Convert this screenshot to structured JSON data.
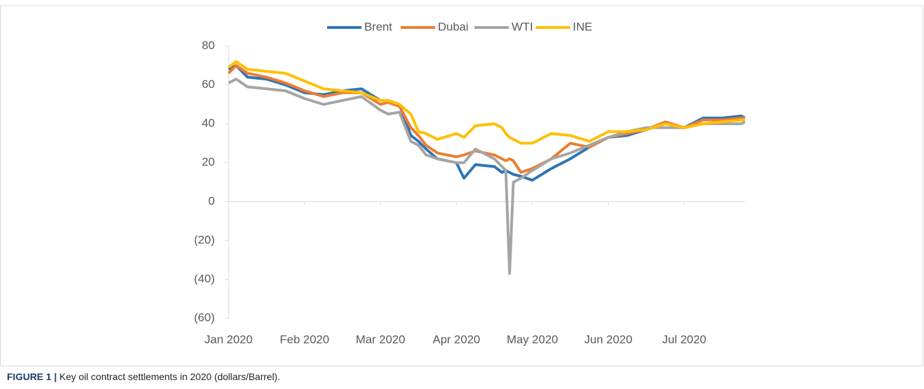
{
  "chart_data": {
    "type": "line",
    "x": [
      0,
      0.1,
      0.25,
      0.5,
      0.75,
      1,
      1.25,
      1.5,
      1.75,
      2,
      2.1,
      2.25,
      2.4,
      2.5,
      2.6,
      2.75,
      3,
      3.1,
      3.25,
      3.5,
      3.6,
      3.65,
      3.7,
      3.75,
      3.85,
      4,
      4.25,
      4.5,
      4.75,
      5,
      5.25,
      5.5,
      5.75,
      6,
      6.25,
      6.5,
      6.75,
      6.8
    ],
    "series": [
      {
        "name": "Brent",
        "color": "#2e75b6",
        "values": [
          68,
          70,
          64,
          63,
          60,
          56,
          55,
          57,
          58,
          52,
          52,
          50,
          34,
          31,
          27,
          22,
          20,
          12,
          19,
          18,
          15,
          16,
          15,
          14,
          13,
          11,
          17,
          22,
          28,
          33,
          34,
          37,
          40,
          38,
          43,
          43,
          44,
          43
        ]
      },
      {
        "name": "Dubai",
        "color": "#ed7d31",
        "values": [
          66,
          70,
          66,
          64,
          61,
          57,
          54,
          56,
          56,
          50,
          51,
          49,
          38,
          34,
          29,
          25,
          23,
          24,
          26,
          24,
          22,
          21,
          22,
          21,
          15,
          17,
          22,
          30,
          28,
          33,
          35,
          37,
          41,
          38,
          42,
          42,
          43,
          43
        ]
      },
      {
        "name": "WTI",
        "color": "#a5a5a5",
        "values": [
          61,
          63,
          59,
          58,
          57,
          53,
          50,
          52,
          54,
          47,
          45,
          46,
          31,
          29,
          24,
          22,
          20,
          20,
          27,
          22,
          18,
          16,
          -37,
          10,
          12,
          16,
          22,
          25,
          29,
          33,
          36,
          38,
          38,
          38,
          40,
          40,
          40,
          41
        ]
      },
      {
        "name": "INE",
        "color": "#ffc000",
        "values": [
          69,
          72,
          68,
          67,
          66,
          62,
          58,
          57,
          56,
          52,
          52,
          50,
          45,
          36,
          35,
          32,
          35,
          33,
          39,
          40,
          38,
          35,
          33,
          32,
          30,
          30,
          35,
          34,
          31,
          36,
          36,
          37,
          40,
          38,
          40,
          41,
          42,
          42
        ]
      }
    ],
    "xlim": [
      0,
      6.8
    ],
    "xticks": [
      {
        "value": 0,
        "label": "Jan 2020"
      },
      {
        "value": 1,
        "label": "Feb 2020"
      },
      {
        "value": 2,
        "label": "Mar 2020"
      },
      {
        "value": 3,
        "label": "Apr 2020"
      },
      {
        "value": 4,
        "label": "May 2020"
      },
      {
        "value": 5,
        "label": "Jun 2020"
      },
      {
        "value": 6,
        "label": "Jul 2020"
      }
    ],
    "ylim": [
      -60,
      80
    ],
    "yticks": [
      {
        "value": -60,
        "label": "(60)"
      },
      {
        "value": -40,
        "label": "(40)"
      },
      {
        "value": -20,
        "label": "(20)"
      },
      0,
      20,
      40,
      60,
      80
    ],
    "legend": "top"
  },
  "caption": {
    "label": "FIGURE 1 |",
    "text": "Key oil contract settlements in 2020 (dollars/Barrel)."
  }
}
